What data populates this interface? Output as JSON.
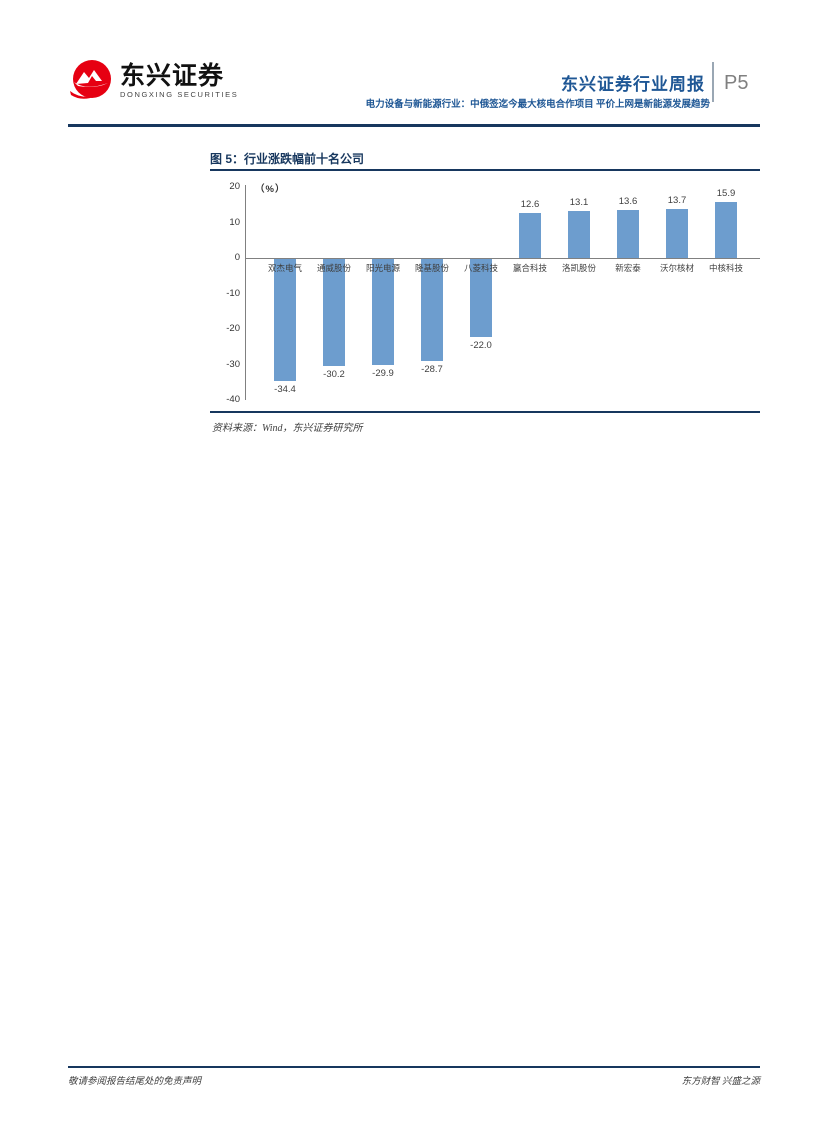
{
  "header": {
    "logo_cn": "东兴证券",
    "logo_en": "DONGXING SECURITIES",
    "report_title": "东兴证券行业周报",
    "page_number": "P5",
    "subtitle": "电力设备与新能源行业：中俄签迄今最大核电合作项目 平价上网是新能源发展趋势"
  },
  "figure": {
    "title": "图 5：行业涨跌幅前十名公司",
    "source": "资料来源：Wind，东兴证券研究所"
  },
  "chart_data": {
    "type": "bar",
    "title": "图 5：行业涨跌幅前十名公司",
    "unit_label": "（%）",
    "categories": [
      "双杰电气",
      "通威股份",
      "阳光电源",
      "隆基股份",
      "八菱科技",
      "赢合科技",
      "洛凯股份",
      "新宏泰",
      "沃尔核材",
      "中核科技"
    ],
    "values": [
      -34.4,
      -30.2,
      -29.9,
      -28.7,
      -22.0,
      12.6,
      13.1,
      13.6,
      13.7,
      15.9
    ],
    "value_labels": [
      "-34.4",
      "-30.2",
      "-29.9",
      "-28.7",
      "-22.0",
      "12.6",
      "13.1",
      "13.6",
      "13.7",
      "15.9"
    ],
    "ylabel": "（%）",
    "xlabel": "",
    "ylim": [
      -40,
      20
    ],
    "yticks": [
      20,
      10,
      0,
      -10,
      -20,
      -30,
      -40
    ],
    "grid": false,
    "legend_position": "none",
    "bar_color": "#6d9dce"
  },
  "footer": {
    "left": "敬请参阅报告结尾处的免责声明",
    "right": "东方财智 兴盛之源"
  },
  "colors": {
    "accent_navy": "#17375e",
    "title_blue": "#1f5795",
    "bar_blue": "#6d9dce",
    "page_num_gray": "#808080",
    "logo_red": "#e60012"
  }
}
